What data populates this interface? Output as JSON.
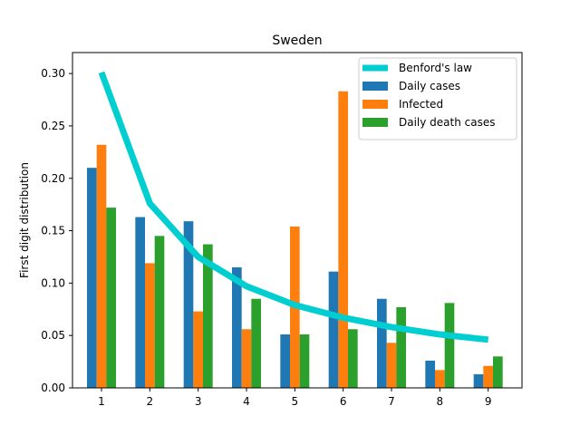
{
  "chart_data": {
    "type": "bar",
    "title": "Sweden",
    "xlabel": "",
    "ylabel": "First digit distribution",
    "categories": [
      "1",
      "2",
      "3",
      "4",
      "5",
      "6",
      "7",
      "8",
      "9"
    ],
    "x": [
      1,
      2,
      3,
      4,
      5,
      6,
      7,
      8,
      9
    ],
    "xlim": [
      0.4,
      9.7
    ],
    "ylim": [
      0,
      0.32
    ],
    "yticks": [
      0.0,
      0.05,
      0.1,
      0.15,
      0.2,
      0.25,
      0.3
    ],
    "ytick_labels": [
      "0.00",
      "0.05",
      "0.10",
      "0.15",
      "0.20",
      "0.25",
      "0.30"
    ],
    "grid": false,
    "legend_position": "top-right",
    "series": [
      {
        "name": "Benford's law",
        "kind": "line",
        "color": "#00CED1",
        "values": [
          0.301,
          0.176,
          0.125,
          0.097,
          0.079,
          0.067,
          0.058,
          0.051,
          0.046
        ]
      },
      {
        "name": "Daily cases",
        "kind": "bar",
        "color": "#1f77b4",
        "values": [
          0.21,
          0.163,
          0.159,
          0.115,
          0.051,
          0.111,
          0.085,
          0.026,
          0.013
        ]
      },
      {
        "name": "Infected",
        "kind": "bar",
        "color": "#ff7f0e",
        "values": [
          0.232,
          0.119,
          0.073,
          0.056,
          0.154,
          0.283,
          0.043,
          0.017,
          0.021
        ]
      },
      {
        "name": "Daily death cases",
        "kind": "bar",
        "color": "#2ca02c",
        "values": [
          0.172,
          0.145,
          0.137,
          0.085,
          0.051,
          0.056,
          0.077,
          0.081,
          0.03
        ]
      }
    ]
  }
}
